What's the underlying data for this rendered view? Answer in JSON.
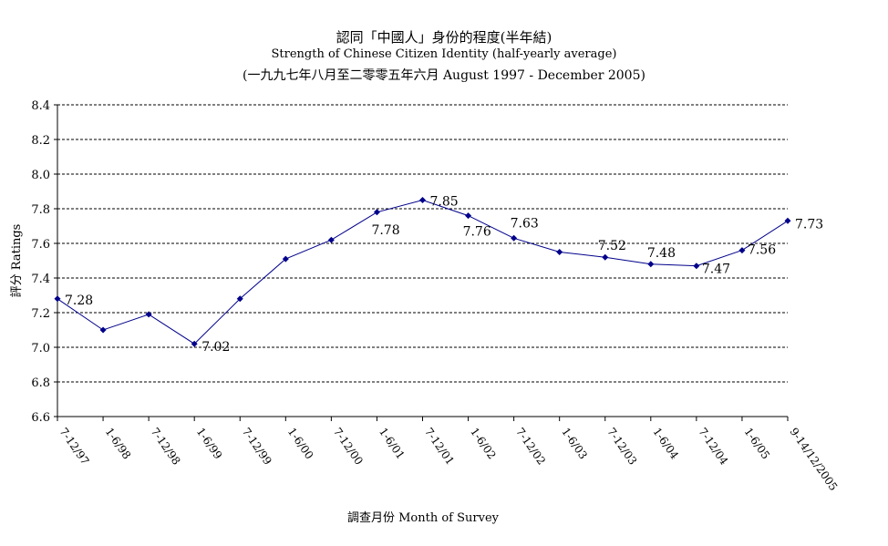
{
  "title_zh": "認同「中國人」身份的程度(半年結)",
  "subtitle": "Strength of Chinese Citizen Identity (half-yearly average)",
  "period": "(一九九七年八月至二零零五年六月 August 1997 - December 2005)",
  "chart_data": {
    "type": "line",
    "categories": [
      "7-12/97",
      "1-6/98",
      "7-12/98",
      "1-6/99",
      "7-12/99",
      "1-6/00",
      "7-12/00",
      "1-6/01",
      "7-12/01",
      "1-6/02",
      "7-12/02",
      "1-6/03",
      "7-12/03",
      "1-6/04",
      "7-12/04",
      "1-6/05",
      "9-14/12/2005"
    ],
    "series": [
      {
        "values": [
          7.28,
          7.1,
          7.19,
          7.02,
          7.28,
          7.51,
          7.62,
          7.78,
          7.85,
          7.76,
          7.63,
          7.55,
          7.52,
          7.48,
          7.47,
          7.56,
          7.73
        ]
      }
    ],
    "data_labels": [
      "7.28",
      "",
      "",
      "7.02",
      "",
      "",
      "",
      "7.78",
      "7.85",
      "7.76",
      "7.63",
      "",
      "7.52",
      "7.48",
      "7.47",
      "7.56",
      "7.73"
    ],
    "ylim": [
      6.6,
      8.4
    ],
    "yticks": [
      "6.6",
      "6.8",
      "7.0",
      "7.2",
      "7.4",
      "7.6",
      "7.8",
      "8.0",
      "8.2",
      "8.4"
    ],
    "ylabel": "評分 Ratings",
    "xlabel": "調查月份 Month of Survey",
    "grid": true,
    "line_color": "#00008b"
  }
}
